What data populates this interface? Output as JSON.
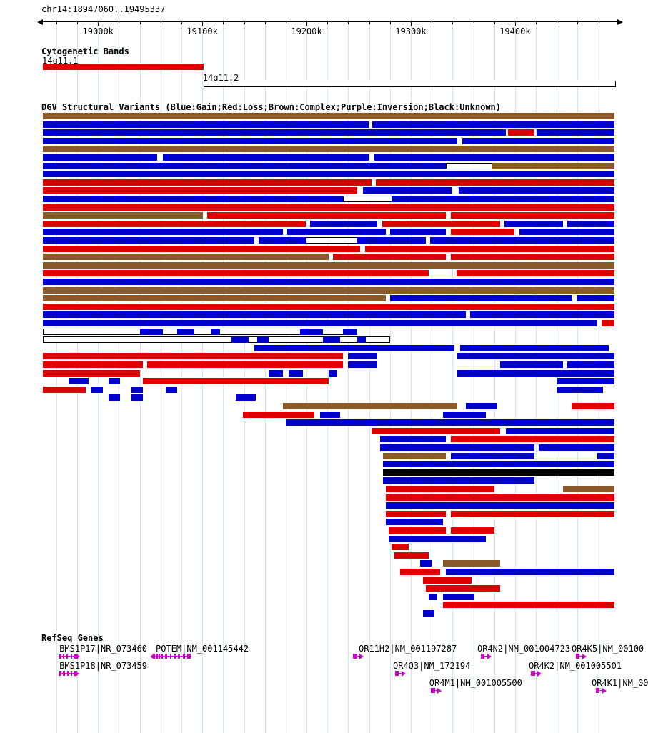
{
  "chart_data": {
    "type": "genome-tracks",
    "region": {
      "label": "chr14:18947060..19495337",
      "chrom": "chr14",
      "start": 18947060,
      "end": 19495337
    },
    "grid_interval": 20000,
    "x_ticks": [
      {
        "pos": 19000000,
        "label": "19000k"
      },
      {
        "pos": 19100000,
        "label": "19100k"
      },
      {
        "pos": 19200000,
        "label": "19200k"
      },
      {
        "pos": 19300000,
        "label": "19300k"
      },
      {
        "pos": 19400000,
        "label": "19400k"
      }
    ],
    "colors": {
      "gain": "#0000CC",
      "loss": "#DE0000",
      "complex": "#8B5A2B",
      "inversion": "#7A00CC",
      "unknown": "#000000",
      "grid": "#C9EBF6",
      "gene": "#CC00CC",
      "band_fill": "#DE0000"
    },
    "tracks": {
      "cytobands": {
        "title": "Cytogenetic Bands",
        "bands": [
          {
            "name": "14q11.1",
            "start_pct": 0,
            "end_pct": 28.1,
            "style": "filled"
          },
          {
            "name": "14q11.2",
            "start_pct": 28.1,
            "end_pct": 100,
            "style": "open"
          }
        ]
      },
      "dgv": {
        "title": "DGV Structural Variants (Blue:Gain;Red:Loss;Brown:Complex;Purple:Inversion;Black:Unknown)",
        "rows": [
          [
            [
              "c",
              0,
              100
            ]
          ],
          [
            [
              "g",
              0,
              57
            ],
            [
              "g",
              57.6,
              100
            ]
          ],
          [
            [
              "g",
              0,
              81
            ],
            [
              "l",
              81.4,
              86
            ],
            [
              "g",
              86.4,
              100
            ]
          ],
          [
            [
              "g",
              0,
              72.5
            ],
            [
              "g",
              73.4,
              100
            ]
          ],
          [
            [
              "c",
              0,
              100
            ]
          ],
          [
            [
              "g",
              0,
              20
            ],
            [
              "g",
              21,
              57
            ],
            [
              "g",
              58,
              100
            ]
          ],
          [
            [
              "g",
              0,
              70.5
            ],
            [
              "o",
              70.5,
              78.5
            ],
            [
              "c",
              78.5,
              100
            ]
          ],
          [
            [
              "g",
              0,
              100
            ]
          ],
          [
            [
              "l",
              0,
              57.5
            ],
            [
              "l",
              58.3,
              100
            ]
          ],
          [
            [
              "l",
              0,
              55
            ],
            [
              "g",
              56,
              71.5
            ],
            [
              "g",
              72.8,
              100
            ]
          ],
          [
            [
              "g",
              0,
              52.5
            ],
            [
              "o",
              52.5,
              61
            ],
            [
              "g",
              61,
              100
            ]
          ],
          [
            [
              "l",
              0,
              100
            ]
          ],
          [
            [
              "c",
              0,
              28
            ],
            [
              "l",
              28.8,
              70.5
            ],
            [
              "l",
              71.4,
              100
            ]
          ],
          [
            [
              "l",
              0,
              46
            ],
            [
              "g",
              46.8,
              58.5
            ],
            [
              "l",
              59.4,
              80
            ],
            [
              "g",
              80.8,
              91
            ],
            [
              "g",
              91.8,
              100
            ]
          ],
          [
            [
              "g",
              0,
              42
            ],
            [
              "g",
              42.8,
              60
            ],
            [
              "g",
              60.8,
              70.5
            ],
            [
              "l",
              71.4,
              82.5
            ],
            [
              "g",
              83.4,
              100
            ]
          ],
          [
            [
              "g",
              0,
              37
            ],
            [
              "g",
              37.8,
              46
            ],
            [
              "o",
              46,
              55
            ],
            [
              "g",
              55,
              67
            ],
            [
              "g",
              67.8,
              100
            ]
          ],
          [
            [
              "l",
              0,
              55.5
            ],
            [
              "l",
              56.4,
              100
            ]
          ],
          [
            [
              "c",
              0,
              50
            ],
            [
              "l",
              50.8,
              70.5
            ],
            [
              "l",
              71.4,
              100
            ]
          ],
          [
            [
              "c",
              0,
              100
            ]
          ],
          [
            [
              "l",
              0,
              67.5
            ],
            [
              "l",
              72.4,
              100
            ]
          ],
          [
            [
              "g",
              0,
              100
            ]
          ],
          [
            [
              "c",
              0,
              100
            ]
          ],
          [
            [
              "c",
              0,
              60
            ],
            [
              "g",
              60.8,
              92.5
            ],
            [
              "g",
              93.4,
              100
            ]
          ],
          [
            [
              "l",
              0,
              100
            ]
          ],
          [
            [
              "g",
              0,
              74
            ],
            [
              "g",
              74.8,
              100
            ]
          ],
          [
            [
              "g",
              0,
              97
            ],
            [
              "l",
              97.8,
              100
            ]
          ],
          [
            [
              "o",
              0,
              52.5
            ],
            [
              "g",
              17,
              21
            ],
            [
              "g",
              23.5,
              26.5
            ],
            [
              "g",
              29.5,
              31
            ],
            [
              "g",
              45,
              49
            ],
            [
              "g",
              52.5,
              55
            ]
          ],
          [
            [
              "o",
              0,
              60.5
            ],
            [
              "g",
              33,
              36
            ],
            [
              "g",
              37.5,
              39.5
            ],
            [
              "g",
              49,
              52
            ],
            [
              "g",
              55,
              56.5
            ]
          ],
          [
            [
              "g",
              37,
              72
            ],
            [
              "g",
              73,
              99
            ]
          ],
          [
            [
              "l",
              0,
              52.5
            ],
            [
              "g",
              53.4,
              58.5
            ],
            [
              "g",
              72.5,
              100
            ]
          ],
          [
            [
              "l",
              0,
              17.5
            ],
            [
              "l",
              18.3,
              52.5
            ],
            [
              "g",
              53.4,
              58.5
            ],
            [
              "g",
              80,
              91
            ],
            [
              "g",
              91.8,
              100
            ]
          ],
          [
            [
              "l",
              0,
              17
            ],
            [
              "g",
              39.5,
              42
            ],
            [
              "g",
              43,
              45.5
            ],
            [
              "g",
              50,
              51.5
            ],
            [
              "g",
              72.5,
              100
            ]
          ],
          [
            [
              "g",
              4.5,
              8
            ],
            [
              "g",
              11.5,
              13.5
            ],
            [
              "l",
              17.5,
              50
            ],
            [
              "g",
              90,
              100
            ]
          ],
          [
            [
              "l",
              0,
              7.5
            ],
            [
              "g",
              8.5,
              10.5
            ],
            [
              "g",
              15.5,
              17.5
            ],
            [
              "g",
              21.5,
              23.5
            ],
            [
              "g",
              90,
              98
            ]
          ],
          [
            [
              "g",
              11.5,
              13.5
            ],
            [
              "g",
              15.5,
              17.5
            ],
            [
              "g",
              33.8,
              37.3
            ]
          ],
          [
            [
              "c",
              42,
              72.5
            ],
            [
              "g",
              74,
              79.5
            ],
            [
              "l",
              92.5,
              100
            ]
          ],
          [
            [
              "l",
              35,
              47.5
            ],
            [
              "g",
              48.5,
              52
            ],
            [
              "g",
              70,
              77.5
            ]
          ],
          [
            [
              "g",
              42.5,
              100
            ]
          ],
          [
            [
              "l",
              57.5,
              80
            ],
            [
              "g",
              81,
              100
            ]
          ],
          [
            [
              "g",
              59,
              70.5
            ],
            [
              "l",
              71.4,
              100
            ]
          ],
          [
            [
              "g",
              59,
              86
            ],
            [
              "g",
              86.8,
              100
            ]
          ],
          [
            [
              "c",
              59.5,
              70.5
            ],
            [
              "g",
              71.4,
              86
            ],
            [
              "g",
              97,
              100
            ]
          ],
          [
            [
              "g",
              59.5,
              100
            ]
          ],
          [
            [
              "u",
              59.5,
              100
            ]
          ],
          [
            [
              "g",
              59.5,
              86
            ]
          ],
          [
            [
              "l",
              60,
              79
            ],
            [
              "c",
              91,
              100
            ]
          ],
          [
            [
              "l",
              60,
              100
            ]
          ],
          [
            [
              "g",
              60,
              100
            ]
          ],
          [
            [
              "l",
              60,
              70.5
            ],
            [
              "l",
              71.4,
              100
            ]
          ],
          [
            [
              "g",
              60,
              70
            ]
          ],
          [
            [
              "l",
              60.5,
              70.5
            ],
            [
              "l",
              71.4,
              79
            ]
          ],
          [
            [
              "g",
              60.5,
              77.5
            ]
          ],
          [
            [
              "l",
              61,
              64
            ]
          ],
          [
            [
              "l",
              61.5,
              67.5
            ]
          ],
          [
            [
              "g",
              66,
              68
            ],
            [
              "c",
              70,
              80
            ]
          ],
          [
            [
              "l",
              62.5,
              69.5
            ],
            [
              "g",
              70.5,
              100
            ]
          ],
          [
            [
              "l",
              66.5,
              75
            ]
          ],
          [
            [
              "l",
              67,
              80
            ]
          ],
          [
            [
              "g",
              67.5,
              69
            ],
            [
              "g",
              70,
              75.5
            ]
          ],
          [
            [
              "l",
              70,
              100
            ]
          ],
          [
            [
              "g",
              66.5,
              68.5
            ]
          ]
        ]
      },
      "refseq": {
        "title": "RefSeq Genes",
        "genes": [
          {
            "label": "BMS1P17|NR_073460",
            "row": 0,
            "label_pct": 2.9,
            "glyph": {
              "start_pct": 2.9,
              "end_pct": 6.1,
              "dir": "right",
              "exons": [
                [
                  0,
                  0.12
                ],
                [
                  0.18,
                  0.1
                ],
                [
                  0.38,
                  0.08
                ],
                [
                  0.6,
                  0.1
                ],
                [
                  0.82,
                  0.18
                ]
              ]
            }
          },
          {
            "label": "POTEM|NM_001145442",
            "row": 0,
            "label_pct": 19.75,
            "glyph": {
              "start_pct": 19.1,
              "end_pct": 26.0,
              "dir": "left",
              "exons": [
                [
                  0.02,
                  0.05
                ],
                [
                  0.09,
                  0.05
                ],
                [
                  0.16,
                  0.04
                ],
                [
                  0.23,
                  0.04
                ],
                [
                  0.33,
                  0.05
                ],
                [
                  0.45,
                  0.05
                ],
                [
                  0.56,
                  0.04
                ],
                [
                  0.66,
                  0.05
                ],
                [
                  0.78,
                  0.05
                ],
                [
                  0.9,
                  0.08
                ]
              ]
            }
          },
          {
            "label": "OR11H2|NM_001197287",
            "row": 0,
            "label_pct": 55.25,
            "glyph": {
              "start_pct": 54.3,
              "end_pct": 55.8,
              "dir": "right",
              "exons": [
                [
                  0,
                  0.45
                ]
              ]
            }
          },
          {
            "label": "OR4N2|NM_001004723",
            "row": 0,
            "label_pct": 76.0,
            "glyph": {
              "start_pct": 76.6,
              "end_pct": 78.1,
              "dir": "right",
              "exons": [
                [
                  0,
                  0.45
                ]
              ]
            }
          },
          {
            "label": "OR4K5|NM_00100",
            "row": 0,
            "label_pct": 92.5,
            "glyph": {
              "start_pct": 93.2,
              "end_pct": 94.7,
              "dir": "right",
              "exons": [
                [
                  0,
                  0.45
                ]
              ]
            }
          },
          {
            "label": "BMS1P18|NR_073459",
            "row": 1,
            "label_pct": 2.9,
            "glyph": {
              "start_pct": 2.9,
              "end_pct": 6.0,
              "dir": "right",
              "exons": [
                [
                  0,
                  0.12
                ],
                [
                  0.2,
                  0.1
                ],
                [
                  0.42,
                  0.08
                ],
                [
                  0.62,
                  0.1
                ],
                [
                  0.84,
                  0.16
                ]
              ]
            }
          },
          {
            "label": "OR4Q3|NM_172194",
            "row": 1,
            "label_pct": 61.25,
            "glyph": {
              "start_pct": 61.6,
              "end_pct": 63.1,
              "dir": "right",
              "exons": [
                [
                  0,
                  0.45
                ]
              ]
            }
          },
          {
            "label": "OR4K2|NM_001005501",
            "row": 1,
            "label_pct": 85.0,
            "glyph": {
              "start_pct": 85.4,
              "end_pct": 86.9,
              "dir": "right",
              "exons": [
                [
                  0,
                  0.45
                ]
              ]
            }
          },
          {
            "label": "OR4M1|NM_001005500",
            "row": 2,
            "label_pct": 67.6,
            "glyph": {
              "start_pct": 67.9,
              "end_pct": 69.4,
              "dir": "right",
              "exons": [
                [
                  0,
                  0.45
                ]
              ]
            }
          },
          {
            "label": "OR4K1|NM_00",
            "row": 2,
            "label_pct": 96.0,
            "glyph": {
              "start_pct": 96.7,
              "end_pct": 98.2,
              "dir": "right",
              "exons": [
                [
                  0,
                  0.45
                ]
              ]
            }
          }
        ]
      }
    }
  }
}
